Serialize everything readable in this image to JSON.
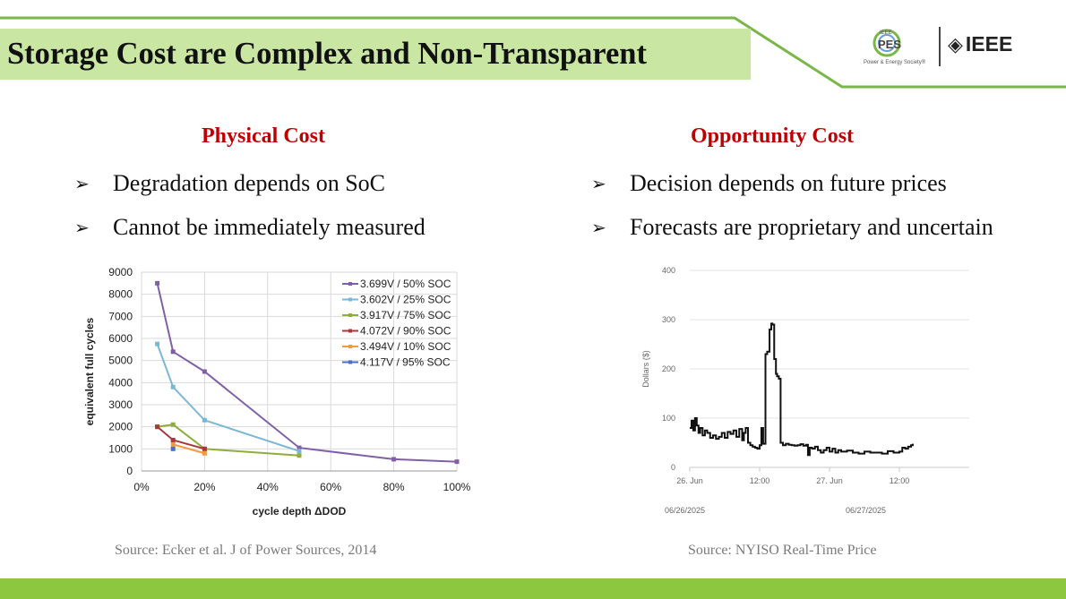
{
  "slide": {
    "title": "Storage Cost are Complex and Non-Transparent",
    "colors": {
      "title_bg": "#c9e6a3",
      "accent_line": "#7ab648",
      "heading": "#c00000",
      "footer": "#8dc63f"
    }
  },
  "logos": {
    "pes_small": "IEEE",
    "pes_main": "PES",
    "pes_sub": "Power & Energy Society®",
    "ieee": "IEEE",
    "ieee_icon": "diamond-logo-icon"
  },
  "left": {
    "heading": "Physical Cost",
    "bullets": [
      "Degradation depends on SoC",
      "Cannot be immediately measured"
    ],
    "source": "Source: Ecker et al. J of Power Sources, 2014"
  },
  "right": {
    "heading": "Opportunity Cost",
    "bullets": [
      "Decision depends on future prices",
      "Forecasts are proprietary and uncertain"
    ],
    "source": "Source: NYISO Real-Time Price"
  },
  "chart_data": [
    {
      "type": "line",
      "title": "",
      "xlabel": "cycle depth ΔDOD",
      "ylabel": "equivalent full cycles",
      "xlim": [
        0,
        100
      ],
      "ylim": [
        0,
        9000
      ],
      "xticks": [
        0,
        20,
        40,
        60,
        80,
        100
      ],
      "xtick_labels": [
        "0%",
        "20%",
        "40%",
        "60%",
        "80%",
        "100%"
      ],
      "yticks": [
        0,
        1000,
        2000,
        3000,
        4000,
        5000,
        6000,
        7000,
        8000,
        9000
      ],
      "ytick_labels": [
        "0",
        "1000",
        "2000",
        "3000",
        "4000",
        "5000",
        "6000",
        "7000",
        "8000",
        "9000"
      ],
      "grid": true,
      "legend": "top-right",
      "series": [
        {
          "name": "3.699V / 50% SOC",
          "color": "#7f5fa8",
          "x": [
            5,
            10,
            20,
            50,
            80,
            100
          ],
          "y": [
            8500,
            5400,
            4500,
            1050,
            530,
            420
          ]
        },
        {
          "name": "3.602V / 25% SOC",
          "color": "#7bb7d4",
          "x": [
            5,
            10,
            20,
            50
          ],
          "y": [
            5750,
            3800,
            2300,
            900
          ]
        },
        {
          "name": "3.917V / 75% SOC",
          "color": "#8fad3a",
          "x": [
            5,
            10,
            20,
            50
          ],
          "y": [
            2000,
            2100,
            1000,
            700
          ]
        },
        {
          "name": "4.072V / 90% SOC",
          "color": "#a8383b",
          "x": [
            5,
            10,
            20
          ],
          "y": [
            2000,
            1400,
            1000
          ]
        },
        {
          "name": "3.494V / 10% SOC",
          "color": "#f39a3e",
          "x": [
            10,
            20
          ],
          "y": [
            1200,
            800
          ]
        },
        {
          "name": "4.117V / 95% SOC",
          "color": "#4a6fc9",
          "x": [
            10
          ],
          "y": [
            1000
          ]
        }
      ]
    },
    {
      "type": "line",
      "title": "",
      "xlabel": "",
      "ylabel": "Dollars ($)",
      "xlim": [
        0,
        48
      ],
      "ylim": [
        0,
        400
      ],
      "yticks": [
        0,
        100,
        200,
        300,
        400
      ],
      "ytick_labels": [
        "0",
        "100",
        "200",
        "300",
        "400"
      ],
      "xticks": [
        0,
        12,
        24,
        36
      ],
      "xtick_labels": [
        "26. Jun",
        "12:00",
        "27. Jun",
        "12:00"
      ],
      "range_labels": [
        "06/26/2025",
        "06/27/2025"
      ],
      "grid": true,
      "legend": "none",
      "series": [
        {
          "name": "Real-Time Price",
          "color": "#111111",
          "x": [
            0,
            0.3,
            0.6,
            0.9,
            1.2,
            1.5,
            1.8,
            2.2,
            2.6,
            3.0,
            3.5,
            4.0,
            4.5,
            5.0,
            5.5,
            6.0,
            6.5,
            7.0,
            7.5,
            8.0,
            8.5,
            9.0,
            9.3,
            9.6,
            10.0,
            10.4,
            10.8,
            11.2,
            11.6,
            12.0,
            12.3,
            12.6,
            13.0,
            13.3,
            13.7,
            14.0,
            14.2,
            14.5,
            14.8,
            15.0,
            15.3,
            15.6,
            16.0,
            16.5,
            17.0,
            17.5,
            18.0,
            18.5,
            19.0,
            19.5,
            20.0,
            20.3,
            20.6,
            21.0,
            21.5,
            22.0,
            22.5,
            23.0,
            23.5,
            24.0,
            24.5,
            25.0,
            25.5,
            26.0,
            27.0,
            28.0,
            29.0,
            30.0,
            31.0,
            32.0,
            33.0,
            34.0,
            35.0,
            36.0,
            36.5,
            37.0,
            37.5,
            38.0,
            38.3
          ],
          "y": [
            80,
            95,
            75,
            100,
            85,
            70,
            80,
            65,
            75,
            70,
            60,
            65,
            58,
            62,
            70,
            60,
            72,
            68,
            75,
            62,
            78,
            55,
            70,
            80,
            50,
            45,
            42,
            40,
            38,
            45,
            80,
            48,
            230,
            235,
            280,
            292,
            290,
            220,
            190,
            185,
            180,
            50,
            45,
            48,
            46,
            45,
            44,
            45,
            47,
            44,
            46,
            25,
            40,
            38,
            42,
            35,
            30,
            35,
            40,
            32,
            38,
            30,
            35,
            32,
            34,
            30,
            28,
            32,
            30,
            30,
            28,
            33,
            30,
            32,
            40,
            38,
            42,
            45,
            48
          ]
        }
      ]
    }
  ]
}
